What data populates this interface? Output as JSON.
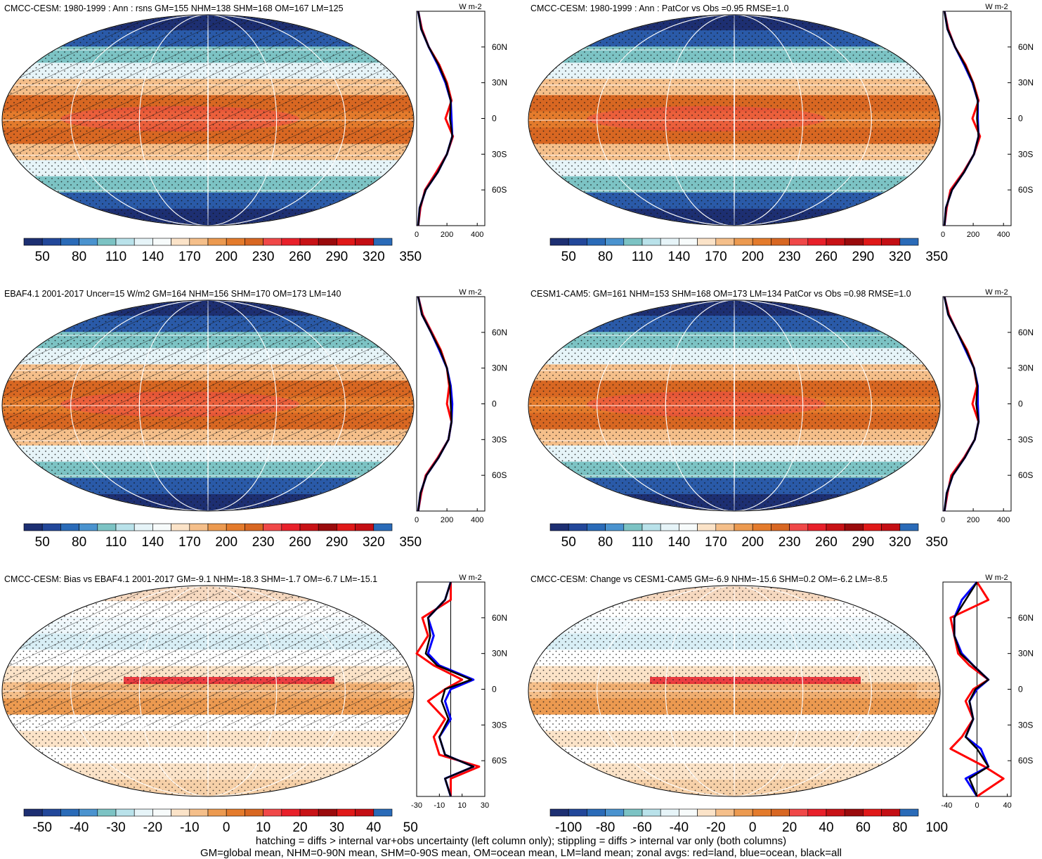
{
  "palette": [
    "#1d2f72",
    "#22479a",
    "#2a6bb8",
    "#4a93cf",
    "#7cc3c4",
    "#b9e2ea",
    "#e6f4f8",
    "#f7fbfb",
    "#fbe3c8",
    "#f5bf8a",
    "#ec9a50",
    "#e47b2c",
    "#d86722",
    "#f04848",
    "#e8202a",
    "#c81216",
    "#9a0a0c",
    "#e01818",
    "#c40e14",
    "#2a6bb8"
  ],
  "line_colors": {
    "land": "#ff0000",
    "ocean": "#0000ff",
    "all": "#000000"
  },
  "panels": [
    {
      "id": "p1",
      "title": "CMCC-CESM: 1980-1999 : Ann : rsns GM=155 NHM=138 SHM=168 OM=167 LM=125",
      "colorbar": {
        "labels": [
          "50",
          "80",
          "110",
          "140",
          "170",
          "200",
          "230",
          "260",
          "290",
          "320",
          "350"
        ]
      },
      "zonal": {
        "unit": "W m-2",
        "xlim": [
          0,
          450
        ],
        "xticks": [
          "0",
          "200",
          "400"
        ],
        "xtick_values": [
          0,
          200,
          400
        ]
      },
      "hatching": true
    },
    {
      "id": "p2",
      "title": "CMCC-CESM: 1980-1999 : Ann : PatCor vs Obs =0.95 RMSE=1.0",
      "colorbar": {
        "labels": [
          "50",
          "80",
          "110",
          "140",
          "170",
          "200",
          "230",
          "260",
          "290",
          "320",
          "350"
        ]
      },
      "zonal": {
        "unit": "W m-2",
        "xlim": [
          0,
          450
        ],
        "xticks": [
          "0",
          "200",
          "400"
        ],
        "xtick_values": [
          0,
          200,
          400
        ]
      },
      "hatching": false
    },
    {
      "id": "p3",
      "title": "EBAF4.1 2001-2017 Uncer=15 W/m2 GM=164 NHM=156 SHM=170 OM=173 LM=140",
      "colorbar": {
        "labels": [
          "50",
          "80",
          "110",
          "140",
          "170",
          "200",
          "230",
          "260",
          "290",
          "320",
          "350"
        ]
      },
      "zonal": {
        "unit": "W m-2",
        "xlim": [
          0,
          450
        ],
        "xticks": [
          "0",
          "200",
          "400"
        ],
        "xtick_values": [
          0,
          200,
          400
        ]
      },
      "hatching": true
    },
    {
      "id": "p4",
      "title": "CESM1-CAM5: GM=161 NHM=153 SHM=168 OM=173 LM=134 PatCor vs Obs =0.98 RMSE=1.0",
      "colorbar": {
        "labels": [
          "50",
          "80",
          "110",
          "140",
          "170",
          "200",
          "230",
          "260",
          "290",
          "320",
          "350"
        ]
      },
      "zonal": {
        "unit": "W m-2",
        "xlim": [
          0,
          450
        ],
        "xticks": [
          "0",
          "200",
          "400"
        ],
        "xtick_values": [
          0,
          200,
          400
        ]
      },
      "hatching": false
    },
    {
      "id": "p5",
      "title": "CMCC-CESM: Bias vs EBAF4.1 2001-2017 GM=-9.1 NHM=-18.3 SHM=-1.7 OM=-6.7 LM=-15.1",
      "colorbar": {
        "labels": [
          "-50",
          "-40",
          "-30",
          "-20",
          "-10",
          "0",
          "10",
          "20",
          "30",
          "40",
          "50"
        ]
      },
      "zonal": {
        "unit": "W m-2",
        "xlim": [
          -30,
          30
        ],
        "xticks": [
          "-30",
          "-10",
          "10",
          "30"
        ],
        "xtick_values": [
          -30,
          -10,
          10,
          30
        ],
        "zero_line": true
      },
      "hatching": true
    },
    {
      "id": "p6",
      "title": "CMCC-CESM: Change vs CESM1-CAM5 GM=-6.9 NHM=-15.6 SHM=0.2 OM=-6.2 LM=-8.5",
      "colorbar": {
        "labels": [
          "-100",
          "-80",
          "-60",
          "-40",
          "-20",
          "0",
          "20",
          "40",
          "60",
          "80",
          "100"
        ]
      },
      "zonal": {
        "unit": "W m-2",
        "xlim": [
          -45,
          45
        ],
        "xticks": [
          "-40",
          "0",
          "40"
        ],
        "xtick_values": [
          -40,
          0,
          40
        ],
        "zero_line": true
      },
      "hatching": false
    }
  ],
  "lat_labels": [
    "60N",
    "30N",
    "0",
    "30S",
    "60S"
  ],
  "lat_values": [
    60,
    30,
    0,
    -30,
    -60
  ],
  "chart_data": [
    {
      "type": "heatmap",
      "title": "CMCC-CESM: 1980-1999 : Ann : rsns GM=155 NHM=138 SHM=168 OM=167 LM=125",
      "levels": [
        50,
        80,
        110,
        140,
        170,
        200,
        230,
        260,
        290,
        320,
        350
      ],
      "zonal_lat": [
        -90,
        -75,
        -60,
        -45,
        -30,
        -15,
        0,
        15,
        30,
        45,
        60,
        75,
        90
      ],
      "zonal_land": [
        10,
        25,
        55,
        130,
        200,
        240,
        190,
        230,
        200,
        150,
        80,
        35,
        10
      ],
      "zonal_ocean": [
        10,
        20,
        60,
        140,
        200,
        235,
        230,
        225,
        190,
        140,
        80,
        30,
        10
      ],
      "zonal_all": [
        10,
        20,
        60,
        140,
        200,
        235,
        220,
        225,
        195,
        145,
        80,
        30,
        10
      ]
    },
    {
      "type": "heatmap",
      "title": "CMCC-CESM: 1980-1999 : Ann : PatCor vs Obs =0.95 RMSE=1.0",
      "levels": [
        50,
        80,
        110,
        140,
        170,
        200,
        230,
        260,
        290,
        320,
        350
      ],
      "zonal_lat": [
        -90,
        -75,
        -60,
        -45,
        -30,
        -15,
        0,
        15,
        30,
        45,
        60,
        75,
        90
      ],
      "zonal_land": [
        10,
        25,
        50,
        135,
        205,
        245,
        195,
        235,
        200,
        150,
        80,
        35,
        10
      ],
      "zonal_ocean": [
        10,
        20,
        60,
        140,
        205,
        235,
        230,
        230,
        195,
        140,
        80,
        30,
        10
      ],
      "zonal_all": [
        10,
        20,
        60,
        140,
        205,
        235,
        225,
        230,
        198,
        145,
        80,
        30,
        10
      ]
    },
    {
      "type": "heatmap",
      "title": "EBAF4.1 2001-2017 Uncer=15 W/m2 GM=164 NHM=156 SHM=170 OM=173 LM=140",
      "levels": [
        50,
        80,
        110,
        140,
        170,
        200,
        230,
        260,
        290,
        320,
        350
      ],
      "zonal_lat": [
        -90,
        -75,
        -60,
        -45,
        -30,
        -15,
        0,
        15,
        30,
        45,
        60,
        75,
        90
      ],
      "zonal_land": [
        10,
        30,
        60,
        140,
        210,
        230,
        200,
        215,
        200,
        160,
        100,
        40,
        10
      ],
      "zonal_ocean": [
        10,
        25,
        65,
        145,
        210,
        230,
        235,
        225,
        200,
        150,
        95,
        35,
        10
      ],
      "zonal_all": [
        10,
        25,
        65,
        145,
        210,
        230,
        225,
        220,
        200,
        155,
        95,
        35,
        10
      ]
    },
    {
      "type": "heatmap",
      "title": "CESM1-CAM5: GM=161 NHM=153 SHM=168 OM=173 LM=134 PatCor vs Obs =0.98 RMSE=1.0",
      "levels": [
        50,
        80,
        110,
        140,
        170,
        200,
        230,
        260,
        290,
        320,
        350
      ],
      "zonal_lat": [
        -90,
        -75,
        -60,
        -45,
        -30,
        -15,
        0,
        15,
        30,
        45,
        60,
        75,
        90
      ],
      "zonal_land": [
        10,
        30,
        55,
        140,
        210,
        235,
        195,
        225,
        205,
        160,
        95,
        40,
        10
      ],
      "zonal_ocean": [
        10,
        25,
        65,
        145,
        210,
        235,
        230,
        230,
        205,
        150,
        95,
        35,
        10
      ],
      "zonal_all": [
        10,
        25,
        65,
        145,
        210,
        235,
        220,
        228,
        205,
        155,
        95,
        35,
        10
      ]
    },
    {
      "type": "heatmap",
      "title": "CMCC-CESM: Bias vs EBAF4.1 2001-2017 GM=-9.1 NHM=-18.3 SHM=-1.7 OM=-6.7 LM=-15.1",
      "levels": [
        -50,
        -40,
        -30,
        -20,
        -10,
        0,
        10,
        20,
        30,
        40,
        50
      ],
      "zonal_lat": [
        -90,
        -75,
        -65,
        -55,
        -40,
        -25,
        -10,
        0,
        8,
        20,
        30,
        45,
        60,
        75,
        90
      ],
      "zonal_land": [
        0,
        0,
        25,
        -10,
        -15,
        -5,
        -20,
        -5,
        10,
        -15,
        -30,
        -20,
        -25,
        0,
        0
      ],
      "zonal_ocean": [
        0,
        -5,
        20,
        -5,
        -10,
        0,
        -5,
        0,
        20,
        -10,
        -20,
        -15,
        -20,
        -5,
        0
      ],
      "zonal_all": [
        0,
        -5,
        20,
        -5,
        -10,
        -2,
        -8,
        -5,
        18,
        -12,
        -22,
        -18,
        -20,
        -5,
        0
      ]
    },
    {
      "type": "heatmap",
      "title": "CMCC-CESM: Change vs CESM1-CAM5 GM=-6.9 NHM=-15.6 SHM=0.2 OM=-6.2 LM=-8.5",
      "levels": [
        -100,
        -80,
        -60,
        -40,
        -20,
        0,
        20,
        40,
        60,
        80,
        100
      ],
      "zonal_lat": [
        -90,
        -75,
        -65,
        -50,
        -40,
        -25,
        -10,
        0,
        8,
        20,
        30,
        45,
        60,
        75,
        90
      ],
      "zonal_land": [
        0,
        35,
        10,
        -35,
        -20,
        -5,
        -15,
        -5,
        15,
        -10,
        -25,
        -30,
        -35,
        15,
        0
      ],
      "zonal_ocean": [
        0,
        -15,
        15,
        5,
        -15,
        -5,
        -10,
        0,
        15,
        -5,
        -20,
        -30,
        -30,
        -20,
        0
      ],
      "zonal_all": [
        0,
        -10,
        15,
        0,
        -15,
        -5,
        -10,
        -2,
        15,
        -5,
        -22,
        -30,
        -30,
        -15,
        0
      ]
    }
  ],
  "footer": {
    "line1": "hatching = diffs > internal var+obs uncertainty (left column only); stippling = diffs > internal var only (both columns)",
    "line2": "GM=global mean, NHM=0-90N mean, SHM=0-90S mean, OM=ocean mean, LM=land mean; zonal avgs: red=land, blue=ocean, black=all"
  }
}
